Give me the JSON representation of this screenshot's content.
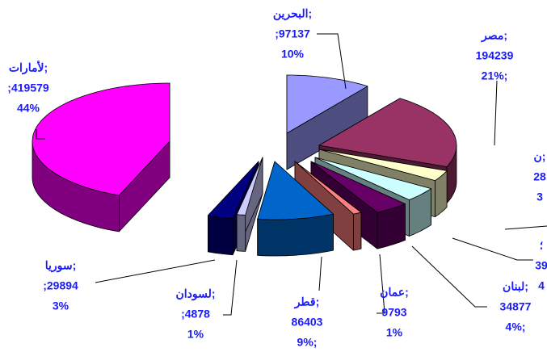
{
  "chart_data": {
    "type": "pie",
    "categories": [
      "البحرين;",
      "مصر;",
      "ن;",
      "؛",
      "لبنان;",
      "عمان;",
      "قطر;",
      "لسودان;",
      "سوريا;",
      "لأمارات;"
    ],
    "amount_labels": [
      ";97137",
      "194239",
      "28",
      "39",
      "34877",
      "9793",
      "86403",
      ";4878",
      ";29894",
      ";419579"
    ],
    "values": [
      10,
      21,
      3,
      4,
      4,
      1,
      9,
      1,
      3,
      44
    ],
    "value_labels": [
      "10%",
      "21%;",
      "3",
      "4",
      "4%;",
      "1%",
      "9%;",
      "1%",
      "3%",
      "44%"
    ],
    "colors": [
      "#9999ff",
      "#993366",
      "#ffffcc",
      "#ccffff",
      "#660066",
      "#ff8080",
      "#0066cc",
      "#ccccff",
      "#000080",
      "#ff00ff"
    ]
  }
}
